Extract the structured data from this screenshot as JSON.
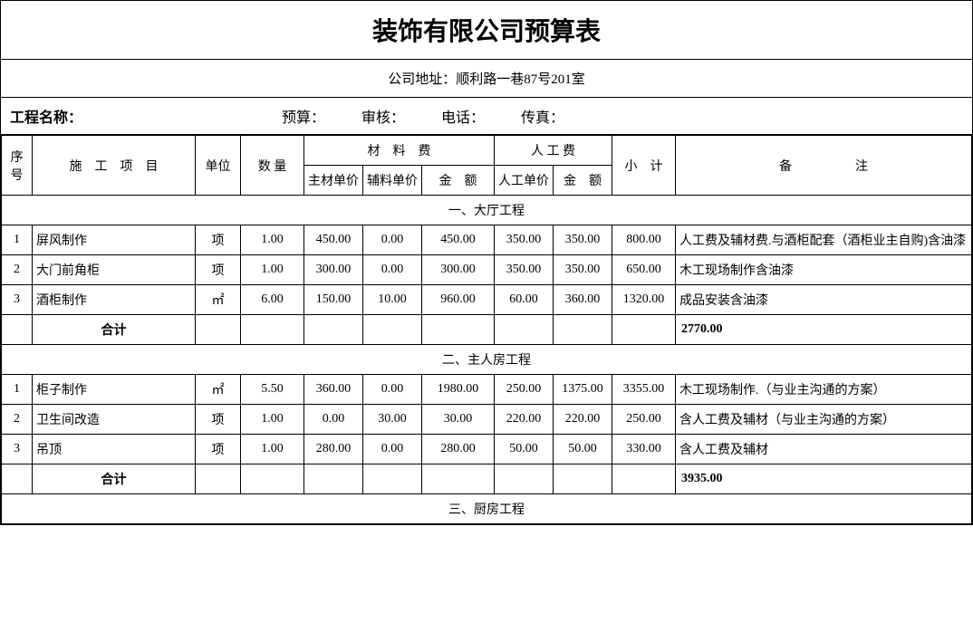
{
  "title": "装饰有限公司预算表",
  "address_label": "公司地址：顺利路一巷87号201室",
  "project_name_label": "工程名称：",
  "budget_label": "预算：",
  "audit_label": "审核：",
  "phone_label": "电话：",
  "fax_label": "传真：",
  "headers": {
    "seq": "序号",
    "item": "施　工　项　目",
    "unit": "单位",
    "qty": "数 量",
    "material_fee": "材　料　费",
    "labor_fee": "人 工 费",
    "mat_main": "主材单价",
    "mat_aux": "辅料单价",
    "mat_amount": "金　额",
    "lab_price": "人工单价",
    "lab_amount": "金　额",
    "subtotal": "小　计",
    "note": "备　　　　　注"
  },
  "sections": [
    {
      "title": "一、大厅工程",
      "rows": [
        {
          "seq": "1",
          "item": "屏风制作",
          "unit": "项",
          "qty": "1.00",
          "mat_main": "450.00",
          "mat_aux": "0.00",
          "mat_amount": "450.00",
          "lab_price": "350.00",
          "lab_amount": "350.00",
          "subtotal": "800.00",
          "note": "人工费及辅材费.与酒柜配套（酒柜业主自购)含油漆"
        },
        {
          "seq": "2",
          "item": "大门前角柜",
          "unit": "项",
          "qty": "1.00",
          "mat_main": "300.00",
          "mat_aux": "0.00",
          "mat_amount": "300.00",
          "lab_price": "350.00",
          "lab_amount": "350.00",
          "subtotal": "650.00",
          "note": "木工现场制作含油漆"
        },
        {
          "seq": "3",
          "item": "酒柜制作",
          "unit": "㎡",
          "qty": "6.00",
          "mat_main": "150.00",
          "mat_aux": "10.00",
          "mat_amount": "960.00",
          "lab_price": "60.00",
          "lab_amount": "360.00",
          "subtotal": "1320.00",
          "note": "成品安装含油漆"
        }
      ],
      "subtotal_label": "合计",
      "subtotal_value": "2770.00"
    },
    {
      "title": "二、主人房工程",
      "rows": [
        {
          "seq": "1",
          "item": "柜子制作",
          "unit": "㎡",
          "qty": "5.50",
          "mat_main": "360.00",
          "mat_aux": "0.00",
          "mat_amount": "1980.00",
          "lab_price": "250.00",
          "lab_amount": "1375.00",
          "subtotal": "3355.00",
          "note": "木工现场制作.（与业主沟通的方案）"
        },
        {
          "seq": "2",
          "item": "卫生间改造",
          "unit": "项",
          "qty": "1.00",
          "mat_main": "0.00",
          "mat_aux": "30.00",
          "mat_amount": "30.00",
          "lab_price": "220.00",
          "lab_amount": "220.00",
          "subtotal": "250.00",
          "note": "含人工费及辅材（与业主沟通的方案）"
        },
        {
          "seq": "3",
          "item": "吊顶",
          "unit": "项",
          "qty": "1.00",
          "mat_main": "280.00",
          "mat_aux": "0.00",
          "mat_amount": "280.00",
          "lab_price": "50.00",
          "lab_amount": "50.00",
          "subtotal": "330.00",
          "note": "含人工费及辅材"
        }
      ],
      "subtotal_label": "合计",
      "subtotal_value": "3935.00"
    },
    {
      "title": "三、厨房工程",
      "rows": [],
      "subtotal_label": "",
      "subtotal_value": ""
    }
  ]
}
